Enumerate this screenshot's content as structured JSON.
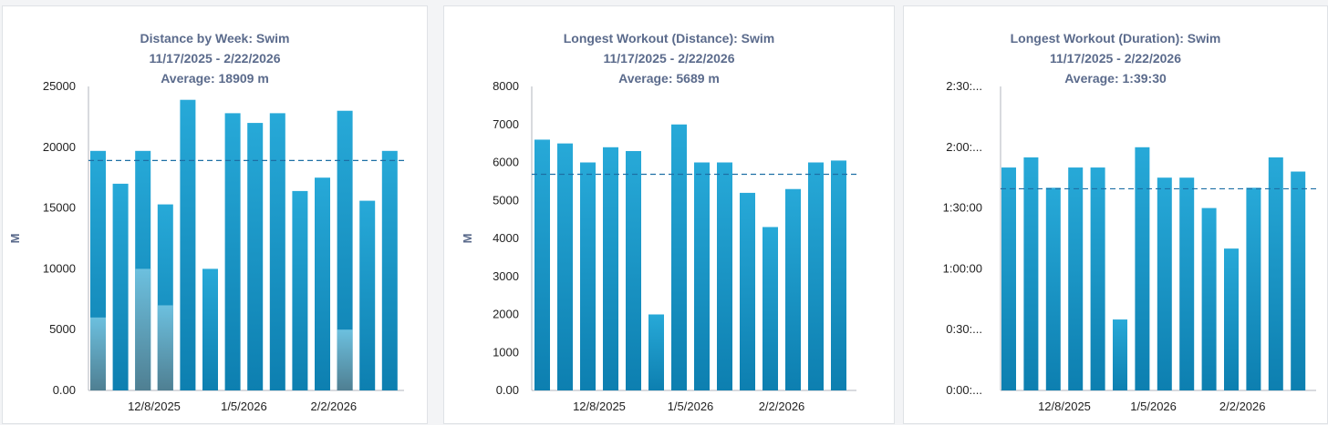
{
  "colors": {
    "bar_top": "#27a9d8",
    "bar_bottom": "#0d7fb0",
    "overlay_top": "#6cc0df",
    "overlay_bottom": "#4f7f92",
    "avg_line": "#1d6fa5",
    "axis": "#b0b5bd"
  },
  "chart_data": [
    {
      "type": "bar",
      "title": "Distance by Week: Swim",
      "date_range": "11/17/2025 - 2/22/2026",
      "average_label": "Average: 18909 m",
      "average": 18909,
      "ylabel": "M",
      "ylim": [
        0,
        25000
      ],
      "yticks": [
        "25000",
        "20000",
        "15000",
        "10000",
        "5000",
        "0.00"
      ],
      "xticks": [
        {
          "index": 3,
          "label": "12/8/2025"
        },
        {
          "index": 7,
          "label": "1/5/2026"
        },
        {
          "index": 11,
          "label": "2/2/2026"
        }
      ],
      "values": [
        19700,
        17000,
        19700,
        15300,
        23900,
        10000,
        22800,
        22000,
        22800,
        16400,
        17500,
        23000,
        15600,
        19700
      ],
      "overlay_values": [
        6000,
        0,
        10000,
        7000,
        0,
        0,
        0,
        0,
        0,
        0,
        0,
        5000,
        0,
        0
      ]
    },
    {
      "type": "bar",
      "title": "Longest Workout (Distance): Swim",
      "date_range": "11/17/2025 - 2/22/2026",
      "average_label": "Average: 5689 m",
      "average": 5689,
      "ylabel": "M",
      "ylim": [
        0,
        8000
      ],
      "yticks": [
        "8000",
        "7000",
        "6000",
        "5000",
        "4000",
        "3000",
        "2000",
        "1000",
        "0.00"
      ],
      "xticks": [
        {
          "index": 3,
          "label": "12/8/2025"
        },
        {
          "index": 7,
          "label": "1/5/2026"
        },
        {
          "index": 11,
          "label": "2/2/2026"
        }
      ],
      "values": [
        6600,
        6500,
        6000,
        6400,
        6300,
        2000,
        7000,
        6000,
        6000,
        5200,
        4300,
        5300,
        6000,
        6050
      ],
      "overlay_values": [
        0,
        0,
        0,
        0,
        0,
        0,
        0,
        0,
        0,
        0,
        0,
        0,
        0,
        0
      ]
    },
    {
      "type": "bar",
      "title": "Longest Workout (Duration): Swim",
      "date_range": "11/17/2025 - 2/22/2026",
      "average_label": "Average: 1:39:30",
      "average": 99.5,
      "ylabel": "",
      "ylim": [
        0,
        150
      ],
      "yticks": [
        "2:30:...",
        "2:00:...",
        "1:30:00",
        "1:00:00",
        "0:30:...",
        "0:00:..."
      ],
      "ytick_values": [
        150,
        120,
        90,
        60,
        30,
        0
      ],
      "xticks": [
        {
          "index": 3,
          "label": "12/8/2025"
        },
        {
          "index": 7,
          "label": "1/5/2026"
        },
        {
          "index": 11,
          "label": "2/2/2026"
        }
      ],
      "values": [
        110,
        115,
        100,
        110,
        110,
        35,
        120,
        105,
        105,
        90,
        70,
        100,
        115,
        108
      ],
      "overlay_values": [
        0,
        0,
        0,
        0,
        0,
        0,
        0,
        0,
        0,
        0,
        0,
        0,
        0,
        0
      ]
    }
  ]
}
